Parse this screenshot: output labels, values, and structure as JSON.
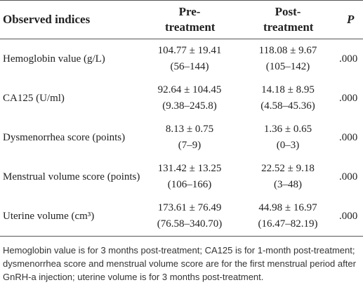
{
  "table": {
    "header": [
      "Observed indices",
      "Pre-treatment",
      "Post-treatment",
      "P"
    ],
    "rows": [
      [
        "Hemoglobin value (g/L)",
        "104.77 ± 19.41",
        "(56–144)",
        "118.08 ± 9.67",
        "(105–142)",
        ".000"
      ],
      [
        "CA125 (U/ml)",
        "92.64 ± 104.45",
        "(9.38–245.8)",
        "14.18 ± 8.95",
        "(4.58–45.36)",
        ".000"
      ],
      [
        "Dysmenorrhea score (points)",
        "8.13 ± 0.75",
        "(7–9)",
        "1.36 ± 0.65",
        "(0–3)",
        ".000"
      ],
      [
        "Menstrual volume score (points)",
        "131.42 ± 13.25",
        "(106–166)",
        "22.52 ± 9.18",
        "(3–48)",
        ".000"
      ],
      [
        "Uterine volume (cm³)",
        "173.61 ± 76.49",
        "(76.58–340.70)",
        "44.98 ± 16.97",
        "(16.47–82.19)",
        ".000"
      ]
    ]
  },
  "footnote": "Hemoglobin value is for 3 months post-treatment; CA125 is for 1-month post-treatment; dysmenorrhea score and menstrual volume score are for the first menstrual period after GnRH-a injection; uterine volume is for 3 months post-treatment."
}
